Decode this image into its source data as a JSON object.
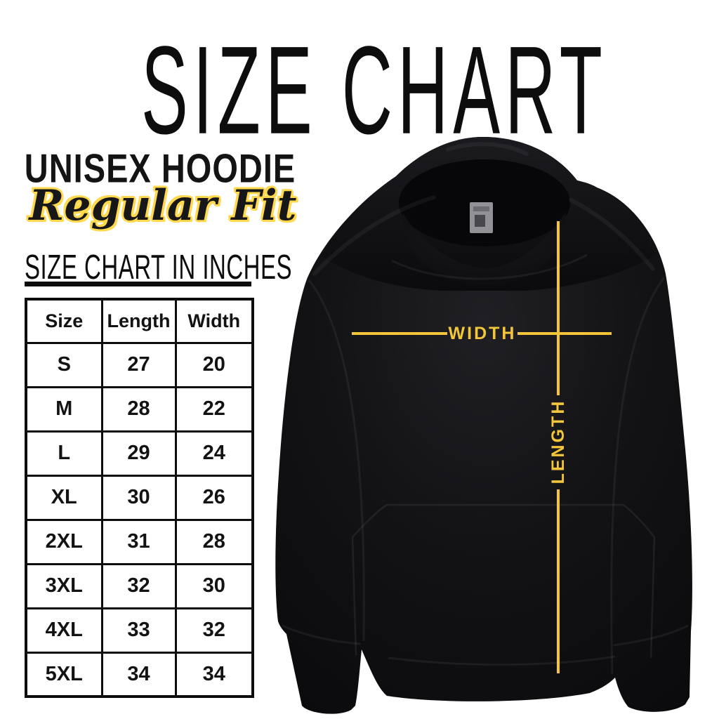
{
  "header": {
    "title": "SIZE CHART",
    "product": "UNISEX HOODIE",
    "fit": "Regular Fit"
  },
  "table_section": {
    "heading": "SIZE CHART IN INCHES"
  },
  "chart_data": {
    "type": "table",
    "title": "SIZE CHART IN INCHES",
    "units": "inches",
    "columns": [
      "Size",
      "Length",
      "Width"
    ],
    "rows": [
      {
        "size": "S",
        "length": "27",
        "width": "20"
      },
      {
        "size": "M",
        "length": "28",
        "width": "22"
      },
      {
        "size": "L",
        "length": "29",
        "width": "24"
      },
      {
        "size": "XL",
        "length": "30",
        "width": "26"
      },
      {
        "size": "2XL",
        "length": "31",
        "width": "28"
      },
      {
        "size": "3XL",
        "length": "32",
        "width": "30"
      },
      {
        "size": "4XL",
        "length": "33",
        "width": "32"
      },
      {
        "size": "5XL",
        "length": "34",
        "width": "34"
      }
    ]
  },
  "annotations": {
    "width_label": "WIDTH",
    "length_label": "LENGTH"
  },
  "colors": {
    "accent_yellow": "#F2C53A",
    "script_outline": "#FFD84D",
    "ink": "#111111",
    "hoodie_black": "#0c0c0e",
    "background": "#ffffff"
  }
}
